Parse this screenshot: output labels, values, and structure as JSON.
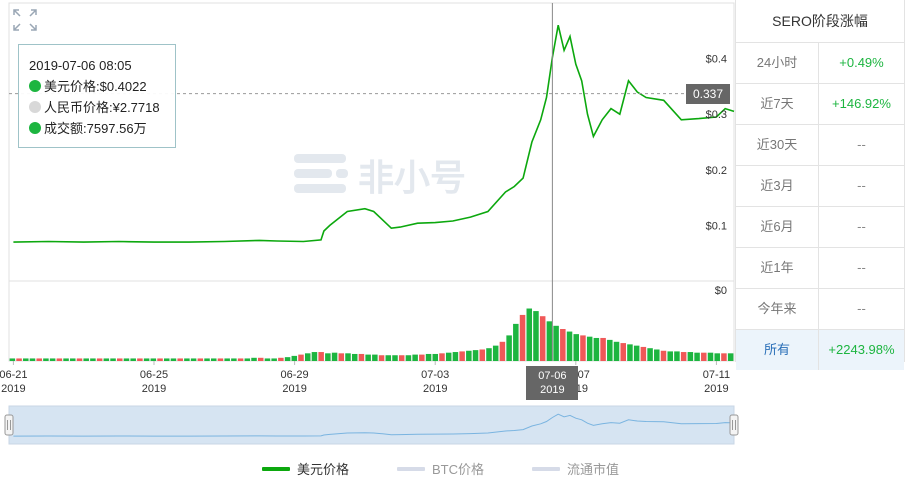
{
  "chart_data": {
    "type": "line",
    "title": "",
    "x_tick_labels": [
      {
        "date": "06-21",
        "year": "2019"
      },
      {
        "date": "06-25",
        "year": "2019"
      },
      {
        "date": "06-29",
        "year": "2019"
      },
      {
        "date": "07-03",
        "year": "2019"
      },
      {
        "date": "07-07",
        "year": "2019"
      },
      {
        "date": "07-11",
        "year": "2019"
      }
    ],
    "xlim": [
      "2019-06-20 21:00",
      "2019-07-11 12:00"
    ],
    "price_axis": {
      "ylim": [
        0.0,
        0.5
      ],
      "ticks": [
        "$0.1",
        "$0.2",
        "$0.3",
        "$0.4"
      ]
    },
    "volume_axis": {
      "ticks": [
        "$0"
      ]
    },
    "series": [
      {
        "name": "美元价格",
        "color": "#0ca80e",
        "points": [
          [
            "2019-06-21 00:00",
            0.07
          ],
          [
            "2019-06-22 00:00",
            0.071
          ],
          [
            "2019-06-23 00:00",
            0.07
          ],
          [
            "2019-06-24 00:00",
            0.071
          ],
          [
            "2019-06-25 00:00",
            0.07
          ],
          [
            "2019-06-26 00:00",
            0.07
          ],
          [
            "2019-06-27 00:00",
            0.071
          ],
          [
            "2019-06-28 00:00",
            0.073
          ],
          [
            "2019-06-28 12:00",
            0.072
          ],
          [
            "2019-06-29 06:00",
            0.071
          ],
          [
            "2019-06-29 18:00",
            0.074
          ],
          [
            "2019-06-29 20:00",
            0.09
          ],
          [
            "2019-06-30 00:00",
            0.1
          ],
          [
            "2019-06-30 12:00",
            0.125
          ],
          [
            "2019-07-01 00:00",
            0.13
          ],
          [
            "2019-07-01 06:00",
            0.125
          ],
          [
            "2019-07-01 12:00",
            0.11
          ],
          [
            "2019-07-01 18:00",
            0.095
          ],
          [
            "2019-07-02 00:00",
            0.097
          ],
          [
            "2019-07-02 12:00",
            0.104
          ],
          [
            "2019-07-03 00:00",
            0.105
          ],
          [
            "2019-07-03 12:00",
            0.108
          ],
          [
            "2019-07-04 00:00",
            0.115
          ],
          [
            "2019-07-04 12:00",
            0.125
          ],
          [
            "2019-07-05 00:00",
            0.16
          ],
          [
            "2019-07-05 06:00",
            0.17
          ],
          [
            "2019-07-05 12:00",
            0.185
          ],
          [
            "2019-07-05 18:00",
            0.25
          ],
          [
            "2019-07-06 00:00",
            0.29
          ],
          [
            "2019-07-06 04:00",
            0.33
          ],
          [
            "2019-07-06 08:00",
            0.4022
          ],
          [
            "2019-07-06 12:00",
            0.46
          ],
          [
            "2019-07-06 16:00",
            0.415
          ],
          [
            "2019-07-06 20:00",
            0.44
          ],
          [
            "2019-07-07 00:00",
            0.39
          ],
          [
            "2019-07-07 04:00",
            0.36
          ],
          [
            "2019-07-07 08:00",
            0.3
          ],
          [
            "2019-07-07 12:00",
            0.26
          ],
          [
            "2019-07-07 18:00",
            0.29
          ],
          [
            "2019-07-08 00:00",
            0.31
          ],
          [
            "2019-07-08 06:00",
            0.3
          ],
          [
            "2019-07-08 12:00",
            0.36
          ],
          [
            "2019-07-08 18:00",
            0.34
          ],
          [
            "2019-07-09 00:00",
            0.33
          ],
          [
            "2019-07-09 12:00",
            0.325
          ],
          [
            "2019-07-10 00:00",
            0.29
          ],
          [
            "2019-07-10 12:00",
            0.292
          ],
          [
            "2019-07-11 00:00",
            0.295
          ],
          [
            "2019-07-11 06:00",
            0.31
          ],
          [
            "2019-07-11 12:00",
            0.305
          ]
        ]
      }
    ],
    "volume_series": {
      "name": "成交额",
      "up_color": "#1db540",
      "down_color": "#f05858",
      "levels": [
        0.04,
        0.04,
        0.04,
        0.04,
        0.04,
        0.04,
        0.04,
        0.04,
        0.04,
        0.04,
        0.04,
        0.04,
        0.04,
        0.04,
        0.04,
        0.04,
        0.04,
        0.04,
        0.04,
        0.04,
        0.04,
        0.04,
        0.04,
        0.04,
        0.04,
        0.04,
        0.04,
        0.04,
        0.04,
        0.04,
        0.04,
        0.04,
        0.04,
        0.04,
        0.04,
        0.04,
        0.05,
        0.05,
        0.04,
        0.04,
        0.05,
        0.06,
        0.08,
        0.1,
        0.12,
        0.14,
        0.14,
        0.12,
        0.13,
        0.12,
        0.12,
        0.11,
        0.11,
        0.1,
        0.1,
        0.09,
        0.09,
        0.09,
        0.09,
        0.09,
        0.1,
        0.1,
        0.11,
        0.11,
        0.12,
        0.13,
        0.14,
        0.15,
        0.16,
        0.17,
        0.18,
        0.2,
        0.24,
        0.3,
        0.4,
        0.58,
        0.72,
        0.82,
        0.78,
        0.7,
        0.62,
        0.55,
        0.5,
        0.46,
        0.42,
        0.4,
        0.38,
        0.36,
        0.36,
        0.33,
        0.3,
        0.28,
        0.26,
        0.24,
        0.22,
        0.2,
        0.18,
        0.16,
        0.15,
        0.15,
        0.14,
        0.14,
        0.13,
        0.13,
        0.13,
        0.12,
        0.12,
        0.12
      ]
    },
    "crosshair": {
      "date": "2019-07-06 08:00",
      "price_value": 0.337
    }
  },
  "tooltip": {
    "time": "2019-07-06 08:05",
    "usd_price": "美元价格:$0.4022",
    "cny_price": "人民币价格:¥2.7718",
    "volume": "成交额:7597.56万"
  },
  "crosshair_labels": {
    "price": "0.337",
    "date": "07-06",
    "year": "2019"
  },
  "side_table": {
    "title": "SERO阶段涨幅",
    "rows": [
      {
        "label": "24小时",
        "value": "+0.49%"
      },
      {
        "label": "近7天",
        "value": "+146.92%"
      },
      {
        "label": "近30天",
        "value": "--"
      },
      {
        "label": "近3月",
        "value": "--"
      },
      {
        "label": "近6月",
        "value": "--"
      },
      {
        "label": "近1年",
        "value": "--"
      },
      {
        "label": "今年来",
        "value": "--"
      },
      {
        "label": "所有",
        "value": "+2243.98%"
      }
    ]
  },
  "legend": [
    {
      "label": "美元价格",
      "color": "#0ca80e",
      "active": true
    },
    {
      "label": "BTC价格",
      "color": "#d6dbe8",
      "active": false
    },
    {
      "label": "流通市值",
      "color": "#d6dbe8",
      "active": false
    }
  ],
  "watermark": "非小号",
  "colors": {
    "grid": "#e0e0e0",
    "navigator_fill": "#d6e4f2",
    "navigator_line": "#7ab4e0",
    "tooltip_up": "#1db540",
    "tooltip_neutral": "#d8d8d8"
  }
}
